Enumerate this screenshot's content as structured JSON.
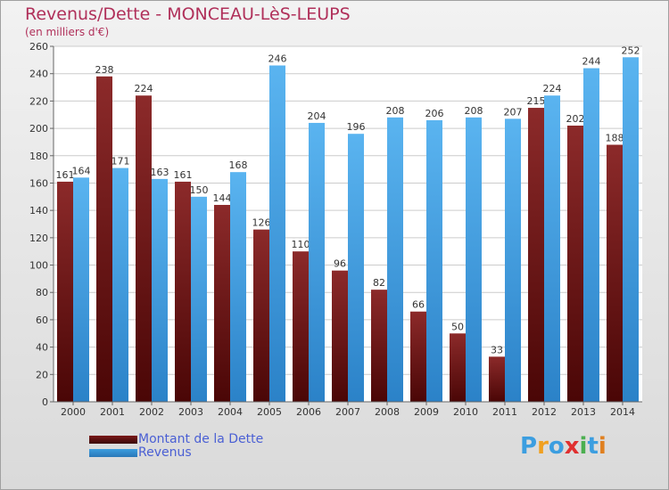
{
  "header": {
    "title": "Revenus/Dette - MONCEAU-LèS-LEUPS",
    "subtitle": "(en milliers d'€)"
  },
  "colors": {
    "dette": "#7a1818",
    "revenus": "#3c9ee0",
    "title": "#b0305a",
    "legend_text": "#4a5fd4"
  },
  "chart_data": {
    "type": "bar",
    "categories": [
      "2000",
      "2001",
      "2002",
      "2003",
      "2004",
      "2005",
      "2006",
      "2007",
      "2008",
      "2009",
      "2010",
      "2011",
      "2012",
      "2013",
      "2014"
    ],
    "series": [
      {
        "name": "Montant de la Dette",
        "values": [
          161,
          238,
          224,
          161,
          144,
          126,
          110,
          96,
          82,
          66,
          50,
          33,
          215,
          202,
          188
        ]
      },
      {
        "name": "Revenus",
        "values": [
          164,
          171,
          163,
          150,
          168,
          246,
          204,
          196,
          208,
          206,
          208,
          207,
          224,
          244,
          252
        ]
      }
    ],
    "ylim": [
      0,
      260
    ],
    "yticks": [
      0,
      20,
      40,
      60,
      80,
      100,
      120,
      140,
      160,
      180,
      200,
      220,
      240,
      260
    ],
    "grid": true,
    "legend_position": "bottom-left"
  },
  "legend": {
    "items": [
      {
        "label": "Montant de la Dette"
      },
      {
        "label": "Revenus"
      }
    ]
  },
  "brand": {
    "text": "Proxiti",
    "letters": [
      "P",
      "r",
      "o",
      "x",
      "i",
      "t",
      "i"
    ],
    "letter_colors": [
      "#3c9ee0",
      "#f0a020",
      "#3c9ee0",
      "#e03030",
      "#4caf50",
      "#3c9ee0",
      "#e08020"
    ]
  }
}
